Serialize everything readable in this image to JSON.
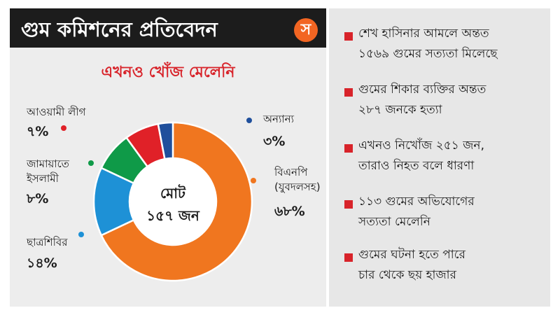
{
  "header": {
    "title": "গুম কমিশনের প্রতিবেদন",
    "logo_text": "স"
  },
  "colors": {
    "accent": "#d8232a",
    "brand": "#f26522",
    "header_bg": "#1c1c1c"
  },
  "chart_data": {
    "type": "pie",
    "title": "এখনও খোঁজ মেলেনি",
    "center_label_line1": "মোট",
    "center_label_line2": "১৫৭ জন",
    "donut": true,
    "slices": [
      {
        "label": "বিএনপি",
        "label_line2": "(যুবদলসহ)",
        "value": 68,
        "value_label": "৬৮%",
        "color": "#f0761f"
      },
      {
        "label": "ছাত্রশিবির",
        "label_line2": "",
        "value": 14,
        "value_label": "১৪%",
        "color": "#1e91d6"
      },
      {
        "label": "জামায়াতে",
        "label_line2": "ইসলামী",
        "value": 8,
        "value_label": "৮%",
        "color": "#0f9a48"
      },
      {
        "label": "আওয়ামী লীগ",
        "label_line2": "",
        "value": 7,
        "value_label": "৭%",
        "color": "#e02128"
      },
      {
        "label": "অন্যান্য",
        "label_line2": "",
        "value": 3,
        "value_label": "৩%",
        "color": "#1f4f9c"
      }
    ]
  },
  "facts": [
    {
      "line1": "শেখ হাসিনার আমলে অন্তত",
      "line2": "১৫৬৯ গুমের সত্যতা মিলেছে"
    },
    {
      "line1": "গুমের শিকার ব্যক্তির অন্তত",
      "line2": "২৮৭ জনকে হত্যা"
    },
    {
      "line1": "এখনও নিখোঁজ ২৫১ জন,",
      "line2": "তারাও নিহত বলে ধারণা"
    },
    {
      "line1": "১১৩ গুমের অভিযোগের",
      "line2": "সত্যতা মেলেনি"
    },
    {
      "line1": "গুমের ঘটনা হতে পারে",
      "line2": "চার থেকে ছয় হাজার"
    }
  ]
}
